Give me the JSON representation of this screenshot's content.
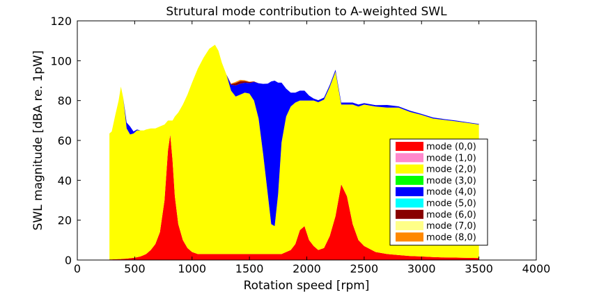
{
  "chart_data": {
    "type": "area",
    "title": "Strutural mode contribution to A-weighted SWL",
    "xlabel": "Rotation speed [rpm]",
    "ylabel": "SWL magnitude [dBA re. 1pW]",
    "xlim": [
      0,
      4000
    ],
    "ylim": [
      0,
      120
    ],
    "xticks": [
      0,
      500,
      1000,
      1500,
      2000,
      2500,
      3000,
      3500,
      4000
    ],
    "yticks": [
      0,
      20,
      40,
      60,
      80,
      100,
      120
    ],
    "grid": false,
    "legend_position": "bottom-right",
    "stacked": true,
    "x": [
      280,
      300,
      330,
      360,
      380,
      400,
      430,
      460,
      490,
      520,
      550,
      580,
      600,
      640,
      680,
      720,
      760,
      790,
      810,
      830,
      850,
      880,
      920,
      960,
      1000,
      1050,
      1100,
      1150,
      1200,
      1230,
      1260,
      1300,
      1340,
      1380,
      1420,
      1460,
      1500,
      1540,
      1580,
      1620,
      1660,
      1690,
      1720,
      1750,
      1780,
      1820,
      1860,
      1900,
      1940,
      1980,
      2020,
      2060,
      2100,
      2150,
      2200,
      2250,
      2300,
      2350,
      2400,
      2450,
      2500,
      2600,
      2700,
      2800,
      2900,
      3000,
      3100,
      3200,
      3300,
      3400,
      3500
    ],
    "series": [
      {
        "name": "mode (0,0)",
        "color": "#ff0000",
        "values": [
          0.3,
          0.3,
          0.4,
          0.5,
          0.5,
          0.6,
          0.7,
          0.9,
          1.1,
          1.4,
          1.8,
          2.5,
          3,
          5,
          8,
          14,
          30,
          55,
          63,
          50,
          32,
          18,
          10,
          6,
          4,
          3,
          3,
          3,
          3,
          3,
          3,
          3,
          3,
          3,
          3,
          3,
          3,
          3,
          3,
          3,
          3,
          3,
          3,
          3,
          3,
          4,
          5,
          8,
          15,
          17,
          10,
          7,
          5,
          6,
          12,
          22,
          38,
          32,
          18,
          10,
          7,
          4,
          3,
          2.5,
          2,
          1.8,
          1.5,
          1.3,
          1.2,
          1.1,
          1
        ]
      },
      {
        "name": "mode (1,0)",
        "color": "#ff88cc",
        "values": [
          0,
          0,
          0,
          0,
          0,
          0,
          0,
          0,
          0,
          0,
          0,
          0,
          0,
          0,
          0,
          0,
          0,
          0,
          0,
          0,
          0,
          0,
          0,
          0,
          0,
          0,
          0,
          0,
          0,
          0,
          0,
          0,
          0,
          0,
          0,
          0,
          0,
          0,
          0,
          0,
          0,
          0,
          0,
          0,
          0,
          0,
          0,
          0,
          0,
          0,
          0,
          0,
          0,
          0,
          0,
          0,
          0,
          0,
          0,
          0,
          0,
          0,
          0,
          0,
          0,
          0,
          0,
          0,
          0,
          0,
          0
        ]
      },
      {
        "name": "mode (2,0)",
        "color": "#ffff00",
        "values": [
          63.2,
          64.2,
          72.1,
          79.5,
          86.5,
          80.9,
          65.3,
          62.1,
          62.4,
          63.6,
          63.2,
          62.5,
          62.5,
          61,
          58,
          53,
          38,
          15,
          7,
          20,
          40,
          56,
          68,
          77,
          85,
          93,
          98.5,
          103,
          105,
          102,
          96,
          90,
          82,
          79,
          80,
          81,
          80.5,
          77,
          68,
          50,
          30,
          15,
          14,
          30,
          56,
          68,
          72,
          71,
          65,
          63,
          70,
          73,
          74.2,
          74.5,
          74.8,
          72.5,
          40,
          46,
          60,
          67,
          71,
          73,
          73.5,
          74,
          72.3,
          71,
          69.5,
          69,
          68.4,
          67.7,
          67
        ]
      },
      {
        "name": "mode (3,0)",
        "color": "#00ff00",
        "values": [
          0,
          0,
          0,
          0,
          0,
          0,
          0,
          0,
          0,
          0,
          0,
          0,
          0,
          0,
          0,
          0,
          0,
          0,
          0,
          0,
          0,
          0,
          0,
          0,
          0,
          0,
          0,
          0,
          0,
          0,
          0,
          0,
          0,
          0,
          0,
          0,
          0,
          0,
          0,
          0,
          0,
          0,
          0,
          0,
          0,
          0,
          0,
          0,
          0,
          0,
          0,
          0,
          0,
          0,
          0,
          0,
          0,
          0,
          0,
          0,
          0,
          0,
          0,
          0,
          0,
          0,
          0,
          0,
          0,
          0,
          0
        ]
      },
      {
        "name": "mode (4,0)",
        "color": "#0000ff",
        "values": [
          0,
          0,
          0,
          0,
          0,
          0,
          3,
          4,
          1,
          0.5,
          0,
          0,
          0,
          0,
          0,
          0,
          0,
          0,
          0,
          0,
          0,
          0,
          0,
          0,
          0,
          0,
          0,
          0,
          0,
          0,
          0,
          0,
          3,
          5.6,
          5.5,
          5,
          5.3,
          9.4,
          17.7,
          35.4,
          55.5,
          71.6,
          73,
          56,
          30,
          14,
          7,
          5,
          5,
          5,
          2.5,
          1,
          1,
          1,
          1,
          1,
          1,
          1,
          1,
          1,
          0.7,
          0.7,
          1.3,
          0.6,
          0.6,
          0.5,
          0.5,
          0.4,
          0.4,
          0.3,
          0.3
        ]
      },
      {
        "name": "mode (5,0)",
        "color": "#00ffff",
        "values": [
          0,
          0,
          0,
          0,
          0,
          0,
          0,
          0,
          0,
          0,
          0,
          0,
          0,
          0,
          0,
          0,
          0,
          0,
          0,
          0,
          0,
          0,
          0,
          0,
          0,
          0,
          0,
          0,
          0,
          0,
          0,
          0,
          0,
          0,
          0,
          0,
          0,
          0,
          0,
          0,
          0,
          0,
          0,
          0,
          0,
          0,
          0,
          0,
          0,
          0,
          0,
          0,
          0,
          0,
          0,
          0,
          0,
          0,
          0,
          0,
          0,
          0,
          0,
          0,
          0,
          0,
          0,
          0,
          0,
          0,
          0
        ]
      },
      {
        "name": "mode (6,0)",
        "color": "#880000",
        "values": [
          0,
          0,
          0,
          0,
          0,
          0,
          0,
          0,
          0,
          0,
          0,
          0,
          0,
          0,
          0,
          0,
          0,
          0,
          0,
          0,
          0,
          0,
          0,
          0,
          0,
          0,
          0,
          0,
          0,
          0,
          0,
          0,
          0.3,
          1.2,
          1.3,
          0.8,
          0.5,
          0.2,
          0,
          0,
          0,
          0,
          0,
          0,
          0,
          0,
          0,
          0,
          0,
          0,
          0,
          0,
          0,
          0,
          0,
          0,
          0,
          0,
          0,
          0,
          0,
          0,
          0,
          0,
          0,
          0,
          0,
          0,
          0,
          0,
          0
        ]
      },
      {
        "name": "mode (7,0)",
        "color": "#ffff88",
        "values": [
          0,
          0,
          0,
          0,
          0,
          0,
          0,
          0,
          0,
          0,
          0,
          0,
          0,
          0,
          0,
          0,
          0,
          0,
          0,
          0,
          0,
          0,
          0,
          0,
          0,
          0,
          0,
          0,
          0,
          0,
          0,
          0,
          0,
          0,
          0,
          0,
          0,
          0,
          0,
          0,
          0,
          0,
          0,
          0,
          0,
          0,
          0,
          0,
          0,
          0,
          0,
          0,
          0,
          0,
          0,
          0,
          0,
          0,
          0,
          0,
          0,
          0,
          0,
          0,
          0,
          0,
          0,
          0,
          0,
          0,
          0
        ]
      },
      {
        "name": "mode (8,0)",
        "color": "#ff8800",
        "values": [
          0,
          0,
          0,
          0,
          0,
          0,
          0,
          0,
          0,
          0,
          0,
          0,
          0,
          0,
          0,
          0,
          0,
          0,
          0,
          0,
          0,
          0,
          0,
          0,
          0,
          0,
          0,
          0,
          0,
          0,
          0,
          0,
          0.2,
          0.6,
          0.6,
          0.4,
          0.2,
          0,
          0,
          0,
          0,
          0,
          0,
          0,
          0,
          0,
          0,
          0,
          0,
          0,
          0,
          0,
          0,
          0,
          0,
          0,
          0,
          0,
          0,
          0,
          0,
          0,
          0,
          0,
          0,
          0,
          0,
          0,
          0,
          0,
          0
        ]
      }
    ]
  }
}
